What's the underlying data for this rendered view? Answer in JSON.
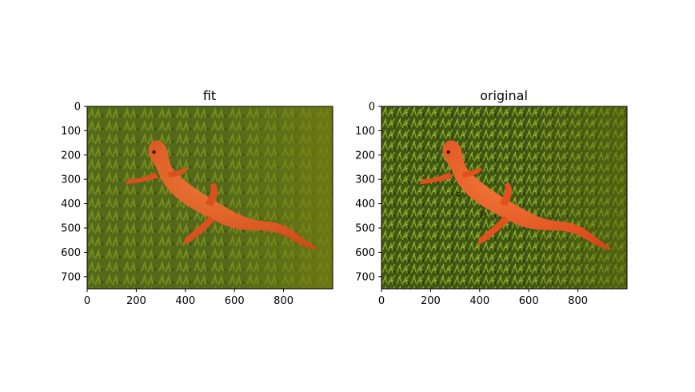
{
  "chart_data": [
    {
      "type": "image",
      "title": "fit",
      "xlabel": "",
      "ylabel": "",
      "xlim": [
        0,
        1000
      ],
      "ylim": [
        750,
        0
      ],
      "xticks": [
        0,
        200,
        400,
        600,
        800
      ],
      "yticks": [
        0,
        100,
        200,
        300,
        400,
        500,
        600,
        700
      ],
      "content": "orange-red newt (eft) on green moss, smoother reconstructed image"
    },
    {
      "type": "image",
      "title": "original",
      "xlabel": "",
      "ylabel": "",
      "xlim": [
        0,
        1000
      ],
      "ylim": [
        750,
        0
      ],
      "xticks": [
        0,
        200,
        400,
        600,
        800
      ],
      "yticks": [
        0,
        100,
        200,
        300,
        400,
        500,
        600,
        700
      ],
      "content": "orange-red newt (eft) on green moss, original photo"
    }
  ],
  "colors": {
    "moss_dark": "#2f4010",
    "moss_mid": "#56731a",
    "moss_light": "#8aa32a",
    "newt": "#e2501c",
    "newt_highlight": "#f47a3a"
  }
}
